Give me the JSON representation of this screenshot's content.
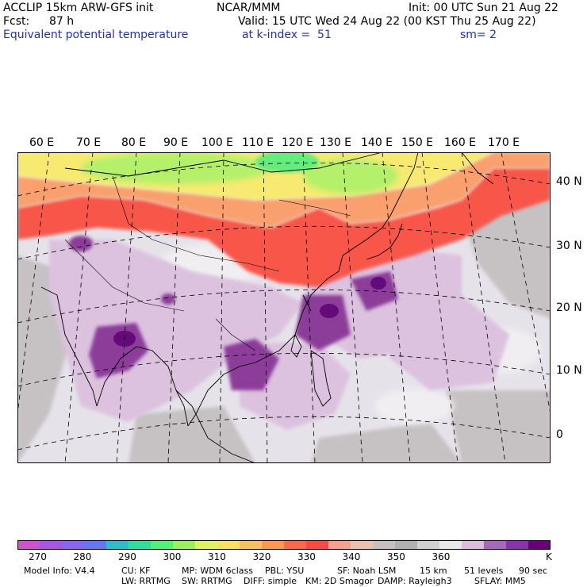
{
  "header": {
    "left1": "ACCLIP 15km ARW-GFS init",
    "left2_label": "Fcst:",
    "left2_value": "87 h",
    "left3": "Equivalent potential temperature",
    "center1": "NCAR/MMM",
    "center2": "Valid: 15 UTC Wed 24 Aug 22 (00 KST Thu 25 Aug 22)",
    "center3": "at k-index =  51",
    "right1": "Init: 00 UTC Sun 21 Aug 22",
    "right3": "sm= 2"
  },
  "longitude_labels": [
    "60 E",
    "70 E",
    "80 E",
    "90 E",
    "100 E",
    "110 E",
    "120 E",
    "130 E",
    "140 E",
    "150 E",
    "160 E",
    "170 E"
  ],
  "latitude_labels": [
    "40 N",
    "30 N",
    "20 N",
    "10 N",
    "0"
  ],
  "colorbar": {
    "colors": [
      "#cc55cc",
      "#aa55dd",
      "#8866ee",
      "#6677ee",
      "#33bbcc",
      "#33dd99",
      "#55ee77",
      "#99f066",
      "#ddf266",
      "#f8e066",
      "#f8c066",
      "#f89a55",
      "#f86a50",
      "#f84a40",
      "#f8a090",
      "#eac0b0",
      "#c8c0c0",
      "#b0b0b0",
      "#d0d0d0",
      "#e8e8e8",
      "#ddbbdd",
      "#aa66bb",
      "#8833aa",
      "#660077"
    ],
    "tick_labels": [
      "270",
      "280",
      "290",
      "300",
      "310",
      "320",
      "330",
      "340",
      "350",
      "360"
    ],
    "unit": "K"
  },
  "footer": {
    "line1": [
      "Model Info: V4.4",
      "CU: KF",
      "MP: WDM 6class",
      "PBL: YSU",
      "SF: Noah LSM",
      "15 km",
      "51 levels",
      "90 sec"
    ],
    "line2": [
      "LW: RRTMG",
      "SW: RRTMG",
      "DIFF: simple",
      "KM: 2D Smagor",
      "DAMP: Rayleigh3",
      "SFLAY: MM5"
    ]
  }
}
